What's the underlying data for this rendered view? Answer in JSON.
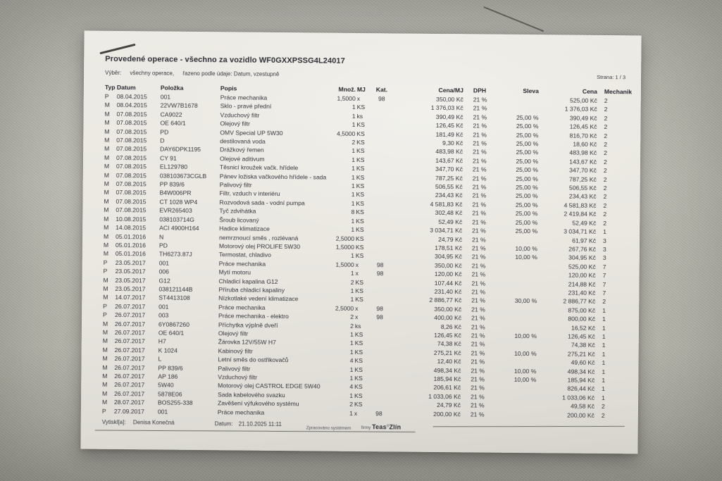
{
  "photo": {
    "background_color": "#b4b3ab",
    "paper_color": "#eae8e1",
    "marks": [
      "pen-mark-top-left",
      "crack-line-top-right"
    ]
  },
  "document": {
    "title": "Provedené operace - všechno za vozidlo WF0GXXPSSG4L24017",
    "filter": {
      "label": "Výběr:",
      "selection": "všechny operace,",
      "order": "řazeno podle údaje: Datum, vzestupně"
    },
    "page_label": "Strana: 1 / 3",
    "table": {
      "columns": [
        "Typ",
        "Datum",
        "Položka",
        "Popis",
        "Množ.",
        "MJ",
        "Kat.",
        "Cena/MJ",
        "DPH",
        "Sleva",
        "Cena",
        "Mechanik"
      ],
      "column_keys": [
        "typ",
        "datum",
        "polozka",
        "popis",
        "mnoz",
        "mj",
        "kat",
        "cena-mj",
        "dph",
        "sleva",
        "cena",
        "mechanik"
      ],
      "rows": [
        [
          "P",
          "08.04.2015",
          "001",
          "Práce mechanika",
          "1,5000",
          "x",
          "98",
          "350,00 Kč",
          "21 %",
          "",
          "525,00 Kč",
          "2"
        ],
        [
          "M",
          "08.04.2015",
          "22VW7B1678",
          "Sklo - pravé přední",
          "1",
          "KS",
          "",
          "1 376,03 Kč",
          "21 %",
          "",
          "1 376,03 Kč",
          "2"
        ],
        [
          "M",
          "07.08.2015",
          "CA9022",
          "Vzduchový filtr",
          "1",
          "ks",
          "",
          "390,49 Kč",
          "21 %",
          "25,00 %",
          "390,49 Kč",
          "2"
        ],
        [
          "M",
          "07.08.2015",
          "OE 640/1",
          "Olejový filtr",
          "1",
          "KS",
          "",
          "126,45 Kč",
          "21 %",
          "25,00 %",
          "126,45 Kč",
          "2"
        ],
        [
          "M",
          "07.08.2015",
          "PD",
          "OMV Special UP 5W30",
          "4,5000",
          "KS",
          "",
          "181,49 Kč",
          "21 %",
          "25,00 %",
          "816,70 Kč",
          "2"
        ],
        [
          "M",
          "07.08.2015",
          "D",
          "destilovaná voda",
          "2",
          "KS",
          "",
          "9,30 Kč",
          "21 %",
          "25,00 %",
          "18,60 Kč",
          "2"
        ],
        [
          "M",
          "07.08.2015",
          "DAY6DPK1195",
          "Drážkový řemen",
          "1",
          "KS",
          "",
          "483,98 Kč",
          "21 %",
          "25,00 %",
          "483,98 Kč",
          "2"
        ],
        [
          "M",
          "07.08.2015",
          "CY 91",
          "Olejové aditivum",
          "1",
          "KS",
          "",
          "143,67 Kč",
          "21 %",
          "25,00 %",
          "143,67 Kč",
          "2"
        ],
        [
          "M",
          "07.08.2015",
          "EL129780",
          "Těsnicí kroužek vačk. hřídele",
          "1",
          "KS",
          "",
          "347,70 Kč",
          "21 %",
          "25,00 %",
          "347,70 Kč",
          "2"
        ],
        [
          "M",
          "07.08.2015",
          "038103673CGLB",
          "Pánev ložiska vačkového hřídele - sada",
          "1",
          "KS",
          "",
          "787,25 Kč",
          "21 %",
          "25,00 %",
          "787,25 Kč",
          "2"
        ],
        [
          "M",
          "07.08.2015",
          "PP 839/6",
          "Palivový filtr",
          "1",
          "KS",
          "",
          "506,55 Kč",
          "21 %",
          "25,00 %",
          "506,55 Kč",
          "2"
        ],
        [
          "M",
          "07.08.2015",
          "B4W006PR",
          "Filtr, vzduch v interiéru",
          "1",
          "KS",
          "",
          "234,43 Kč",
          "21 %",
          "25,00 %",
          "234,43 Kč",
          "2"
        ],
        [
          "M",
          "07.08.2015",
          "CT 1028 WP4",
          "Rozvodová sada - vodní pumpa",
          "1",
          "KS",
          "",
          "4 581,83 Kč",
          "21 %",
          "25,00 %",
          "4 581,83 Kč",
          "2"
        ],
        [
          "M",
          "07.08.2015",
          "EVR265403",
          "Tyč zdvihátka",
          "8",
          "KS",
          "",
          "302,48 Kč",
          "21 %",
          "25,00 %",
          "2 419,84 Kč",
          "2"
        ],
        [
          "M",
          "10.08.2015",
          "038103714G",
          "Šroub licovaný",
          "1",
          "KS",
          "",
          "52,49 Kč",
          "21 %",
          "25,00 %",
          "52,49 Kč",
          "2"
        ],
        [
          "M",
          "14.08.2015",
          "ACI 4900H164",
          "Hadice klimatizace",
          "1",
          "KS",
          "",
          "3 034,71 Kč",
          "21 %",
          "25,00 %",
          "3 034,71 Kč",
          "1"
        ],
        [
          "M",
          "05.01.2016",
          "N",
          "nemrznoucí směs , rozlévaná",
          "2,5000",
          "KS",
          "",
          "24,79 Kč",
          "21 %",
          "",
          "61,97 Kč",
          "3"
        ],
        [
          "M",
          "05.01.2016",
          "PD",
          "Motorový olej PROLIFE 5W30",
          "1,5000",
          "KS",
          "",
          "178,51 Kč",
          "21 %",
          "10,00 %",
          "267,76 Kč",
          "3"
        ],
        [
          "M",
          "05.01.2016",
          "TH6273.87J",
          "Termostat, chladivo",
          "1",
          "KS",
          "",
          "304,95 Kč",
          "21 %",
          "10,00 %",
          "304,95 Kč",
          "3"
        ],
        [
          "P",
          "23.05.2017",
          "001",
          "Práce mechanika",
          "1,5000",
          "x",
          "98",
          "350,00 Kč",
          "21 %",
          "",
          "525,00 Kč",
          "7"
        ],
        [
          "P",
          "23.05.2017",
          "006",
          "Mytí motoru",
          "1",
          "x",
          "98",
          "120,00 Kč",
          "21 %",
          "",
          "120,00 Kč",
          "7"
        ],
        [
          "M",
          "23.05.2017",
          "G12",
          "Chladicí kapalina G12",
          "2",
          "KS",
          "",
          "107,44 Kč",
          "21 %",
          "",
          "214,88 Kč",
          "7"
        ],
        [
          "M",
          "23.05.2017",
          "038121144B",
          "Příruba chladicí kapaliny",
          "1",
          "KS",
          "",
          "231,40 Kč",
          "21 %",
          "",
          "231,40 Kč",
          "7"
        ],
        [
          "M",
          "14.07.2017",
          "ST4413108",
          "Nízkotlaké vedení klimatizace",
          "1",
          "KS",
          "",
          "2 886,77 Kč",
          "21 %",
          "30,00 %",
          "2 886,77 Kč",
          "2"
        ],
        [
          "P",
          "26.07.2017",
          "001",
          "Práce mechanika",
          "2,5000",
          "x",
          "98",
          "350,00 Kč",
          "21 %",
          "",
          "875,00 Kč",
          "1"
        ],
        [
          "P",
          "26.07.2017",
          "003",
          "Práce mechanika - elektro",
          "2",
          "x",
          "98",
          "400,00 Kč",
          "21 %",
          "",
          "800,00 Kč",
          "1"
        ],
        [
          "M",
          "26.07.2017",
          "6Y0867260",
          "Příchytka výplně dveří",
          "2",
          "ks",
          "",
          "8,26 Kč",
          "21 %",
          "",
          "16,52 Kč",
          "1"
        ],
        [
          "M",
          "26.07.2017",
          "OE 640/1",
          "Olejový filtr",
          "1",
          "KS",
          "",
          "126,45 Kč",
          "21 %",
          "10,00 %",
          "126,45 Kč",
          "1"
        ],
        [
          "M",
          "26.07.2017",
          "H7",
          "Žárovka 12V/55W H7",
          "1",
          "KS",
          "",
          "74,38 Kč",
          "21 %",
          "",
          "74,38 Kč",
          "1"
        ],
        [
          "M",
          "26.07.2017",
          "K 1024",
          "Kabinový filtr",
          "1",
          "KS",
          "",
          "275,21 Kč",
          "21 %",
          "10,00 %",
          "275,21 Kč",
          "1"
        ],
        [
          "M",
          "26.07.2017",
          "L",
          "Letní směs do ostřikovačů",
          "4",
          "KS",
          "",
          "12,40 Kč",
          "21 %",
          "",
          "49,60 Kč",
          "1"
        ],
        [
          "M",
          "26.07.2017",
          "PP 839/6",
          "Palivový filtr",
          "1",
          "KS",
          "",
          "498,34 Kč",
          "21 %",
          "10,00 %",
          "498,34 Kč",
          "1"
        ],
        [
          "M",
          "26.07.2017",
          "AP 186",
          "Vzduchový filtr",
          "1",
          "KS",
          "",
          "185,94 Kč",
          "21 %",
          "10,00 %",
          "185,94 Kč",
          "1"
        ],
        [
          "M",
          "26.07.2017",
          "5W40",
          "Motorový olej CASTROL EDGE 5W40",
          "4",
          "KS",
          "",
          "206,61 Kč",
          "21 %",
          "",
          "826,44 Kč",
          "1"
        ],
        [
          "M",
          "26.07.2017",
          "5878E06",
          "Sada kabelového svazku",
          "1",
          "KS",
          "",
          "1 033,06 Kč",
          "21 %",
          "",
          "1 033,06 Kč",
          "1"
        ],
        [
          "M",
          "28.07.2017",
          "BOS255-338",
          "Zavěšení výfukového systému",
          "2",
          "KS",
          "",
          "24,79 Kč",
          "21 %",
          "",
          "49,58 Kč",
          "2"
        ],
        [
          "P",
          "27.09.2017",
          "001",
          "Práce mechanika",
          "1",
          "x",
          "98",
          "200,00 Kč",
          "21 %",
          "",
          "200,00 Kč",
          "2"
        ]
      ]
    },
    "footer": {
      "printed_by_label": "Vytiskl[a]:",
      "printed_by": "Denisa Konečná",
      "date_label": "Datum:",
      "date": "21.10.2025  11:11",
      "processed_by": "Zpracováno systémem",
      "firm_prefix": "firmy",
      "firm_name": "Teas",
      "firm_reg": "®",
      "firm_city": "Zlín"
    }
  }
}
